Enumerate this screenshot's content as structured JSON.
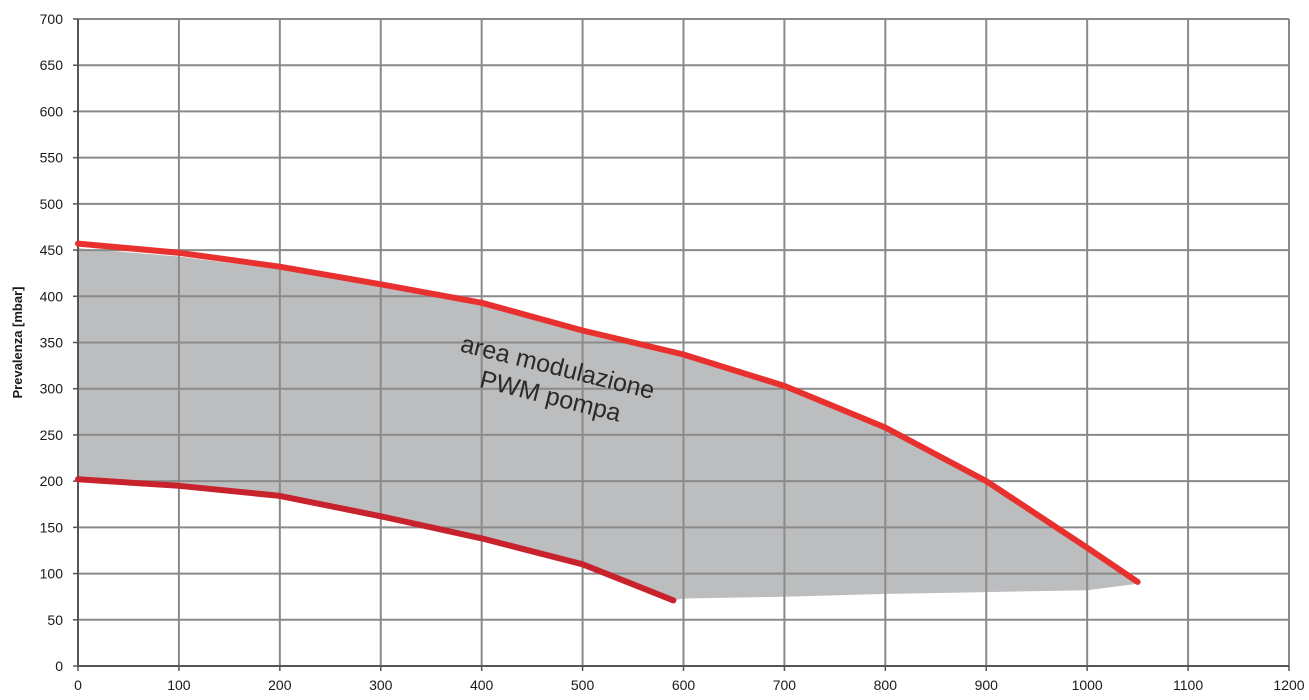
{
  "chart_data": {
    "type": "area",
    "title": "",
    "xlabel": "",
    "ylabel": "Prevalenza [mbar]",
    "xlim": [
      0,
      1200
    ],
    "ylim": [
      0,
      700
    ],
    "xticks": [
      0,
      100,
      200,
      300,
      400,
      500,
      600,
      700,
      800,
      900,
      1000,
      1100,
      1200
    ],
    "yticks": [
      0,
      50,
      100,
      150,
      200,
      250,
      300,
      350,
      400,
      450,
      500,
      550,
      600,
      650,
      700
    ],
    "grid": true,
    "annotation": {
      "lines": [
        "area modulazione",
        "PWM pompa"
      ],
      "x": 470,
      "y": 300,
      "rotation_deg": 14
    },
    "series": [
      {
        "role": "upper-curve",
        "color": "#e8312f",
        "x": [
          0,
          100,
          200,
          300,
          400,
          500,
          600,
          700,
          800,
          900,
          1000,
          1050
        ],
        "y": [
          457,
          447,
          432,
          413,
          393,
          363,
          337,
          303,
          258,
          200,
          128,
          91
        ]
      },
      {
        "role": "lower-curve",
        "color": "#c8232c",
        "x": [
          0,
          100,
          200,
          300,
          400,
          500,
          590
        ],
        "y": [
          202,
          195,
          184,
          162,
          138,
          110,
          71
        ]
      }
    ],
    "area": {
      "color": "#bcbdbf",
      "x": [
        0,
        100,
        200,
        300,
        400,
        500,
        600,
        700,
        800,
        900,
        1000,
        1050,
        1000,
        900,
        800,
        700,
        600,
        590,
        500,
        400,
        300,
        200,
        100,
        0
      ],
      "y": [
        452,
        443,
        429,
        410,
        390,
        360,
        334,
        301,
        256,
        198,
        126,
        89,
        82,
        80,
        78,
        75,
        73,
        71,
        110,
        138,
        162,
        184,
        195,
        202
      ]
    }
  }
}
